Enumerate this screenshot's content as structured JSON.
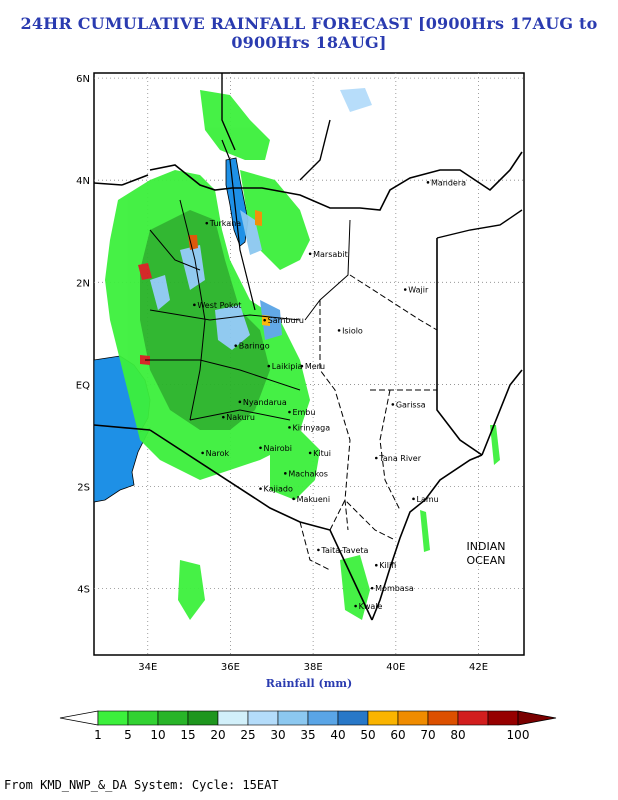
{
  "title": "24HR CUMULATIVE RAINFALL FORECAST [0900Hrs 17AUG to 0900Hrs 18AUG]",
  "axis": {
    "xticks": [
      "34E",
      "36E",
      "38E",
      "40E",
      "42E"
    ],
    "yticks": [
      "6N",
      "4N",
      "2N",
      "EQ",
      "2S",
      "4S"
    ],
    "xlabel": "Rainfall (mm)"
  },
  "map": {
    "lon_range": [
      32.7,
      43.1
    ],
    "lat_range": [
      -5.3,
      6.1
    ],
    "ocean_label_1": "INDIAN",
    "ocean_label_2": "OCEAN",
    "places": [
      {
        "name": "Mandera",
        "lon": 40.85,
        "lat": 3.9
      },
      {
        "name": "Turkana",
        "lon": 35.5,
        "lat": 3.1
      },
      {
        "name": "Marsabit",
        "lon": 38.0,
        "lat": 2.5
      },
      {
        "name": "Wajir",
        "lon": 40.3,
        "lat": 1.8
      },
      {
        "name": "West Pokot",
        "lon": 35.2,
        "lat": 1.5
      },
      {
        "name": "Samburu",
        "lon": 36.9,
        "lat": 1.2
      },
      {
        "name": "Isiolo",
        "lon": 38.7,
        "lat": 1.0
      },
      {
        "name": "Baringo",
        "lon": 36.2,
        "lat": 0.7
      },
      {
        "name": "Laikipia",
        "lon": 37.0,
        "lat": 0.3
      },
      {
        "name": "Meru",
        "lon": 37.8,
        "lat": 0.3
      },
      {
        "name": "Garissa",
        "lon": 40.0,
        "lat": -0.45
      },
      {
        "name": "Nyandarua",
        "lon": 36.3,
        "lat": -0.4
      },
      {
        "name": "Embu",
        "lon": 37.5,
        "lat": -0.6
      },
      {
        "name": "Nakuru",
        "lon": 35.9,
        "lat": -0.7
      },
      {
        "name": "Kirinyaga",
        "lon": 37.5,
        "lat": -0.9
      },
      {
        "name": "Narok",
        "lon": 35.4,
        "lat": -1.4
      },
      {
        "name": "Nairobi",
        "lon": 36.8,
        "lat": -1.3
      },
      {
        "name": "Kitui",
        "lon": 38.0,
        "lat": -1.4
      },
      {
        "name": "Tana River",
        "lon": 39.6,
        "lat": -1.5
      },
      {
        "name": "Machakos",
        "lon": 37.4,
        "lat": -1.8
      },
      {
        "name": "Kajiado",
        "lon": 36.8,
        "lat": -2.1
      },
      {
        "name": "Makueni",
        "lon": 37.6,
        "lat": -2.3
      },
      {
        "name": "Lamu",
        "lon": 40.5,
        "lat": -2.3
      },
      {
        "name": "Taita-Taveta",
        "lon": 38.2,
        "lat": -3.3
      },
      {
        "name": "Kilifi",
        "lon": 39.6,
        "lat": -3.6
      },
      {
        "name": "Mombasa",
        "lon": 39.5,
        "lat": -4.05
      },
      {
        "name": "Kwale",
        "lon": 39.1,
        "lat": -4.4
      }
    ]
  },
  "colorbar": {
    "labels": [
      "1",
      "5",
      "10",
      "15",
      "20",
      "25",
      "30",
      "35",
      "40",
      "50",
      "60",
      "70",
      "80",
      "100"
    ],
    "colors": [
      "#3cf03c",
      "#32d232",
      "#28b428",
      "#1e961e",
      "#d2f0fa",
      "#b4dcfa",
      "#8cc8f0",
      "#5aa5e6",
      "#2878c8",
      "#fab400",
      "#f08c00",
      "#dc5000",
      "#d21e1e",
      "#960000"
    ]
  },
  "footer": "From KMD_NWP_&_DA System: Cycle: 15EAT"
}
